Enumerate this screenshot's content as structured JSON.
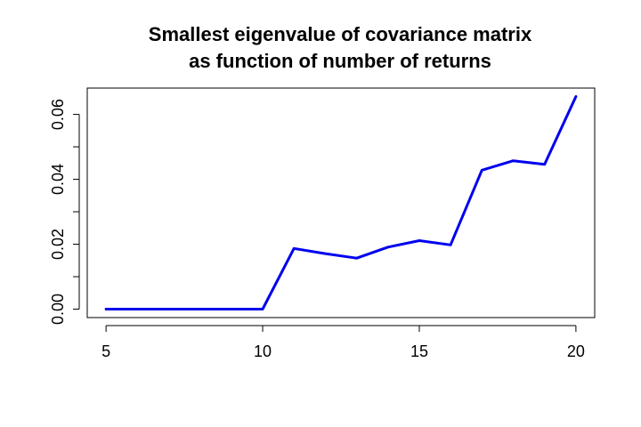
{
  "chart_data": {
    "type": "line",
    "title_lines": [
      "Smallest eigenvalue of covariance matrix",
      "as function of number of returns"
    ],
    "xlabel": "",
    "ylabel": "",
    "x": [
      5,
      6,
      7,
      8,
      9,
      10,
      11,
      12,
      13,
      14,
      15,
      16,
      17,
      18,
      19,
      20
    ],
    "series": [
      {
        "values": [
          0,
          0,
          0,
          0,
          0,
          0,
          0.0187,
          0.0171,
          0.0157,
          0.0191,
          0.0211,
          0.0198,
          0.0428,
          0.0457,
          0.0446,
          0.0655
        ],
        "color": "#0000ee"
      }
    ],
    "xlim": [
      4.4,
      20.6
    ],
    "ylim": [
      -0.0026,
      0.0681
    ],
    "x_ticks": [
      5,
      10,
      15,
      20
    ],
    "x_tick_labels": [
      "5",
      "10",
      "15",
      "20"
    ],
    "y_ticks": [
      0,
      0.01,
      0.02,
      0.03,
      0.04,
      0.05,
      0.06
    ],
    "y_tick_labels": [
      "0.00",
      "",
      "0.02",
      "",
      "0.04",
      "",
      "0.06"
    ],
    "grid": false,
    "legend": "none"
  }
}
